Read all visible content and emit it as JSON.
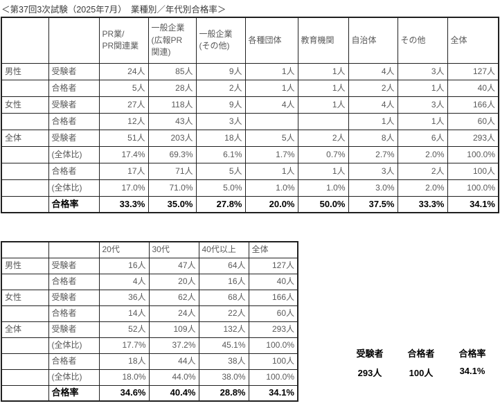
{
  "title": "＜第37回3次試験（2025年7月）　業種別／年代別合格率＞",
  "colors": {
    "border": "#1f1f1f",
    "text": "#595959",
    "text_strong": "#000000",
    "background": "#ffffff"
  },
  "industry_table": {
    "header": [
      "",
      "",
      "PR業/\nPR関連業",
      "一般企業\n(広報PR\n関連)",
      "一般企業\n(その他)",
      "各種団体",
      "教育機関",
      "自治体",
      "その他",
      "全体"
    ],
    "rows": [
      [
        "男性",
        "受験者",
        "24人",
        "85人",
        "9人",
        "1人",
        "1人",
        "4人",
        "3人",
        "127人"
      ],
      [
        "",
        "合格者",
        "5人",
        "28人",
        "2人",
        "1人",
        "1人",
        "2人",
        "1人",
        "40人"
      ],
      [
        "女性",
        "受験者",
        "27人",
        "118人",
        "9人",
        "4人",
        "1人",
        "4人",
        "3人",
        "166人"
      ],
      [
        "",
        "合格者",
        "12人",
        "43人",
        "3人",
        "",
        "",
        "1人",
        "1人",
        "60人"
      ],
      [
        "全体",
        "受験者",
        "51人",
        "203人",
        "18人",
        "5人",
        "2人",
        "8人",
        "6人",
        "293人"
      ],
      [
        "",
        "(全体比)",
        "17.4%",
        "69.3%",
        "6.1%",
        "1.7%",
        "0.7%",
        "2.7%",
        "2.0%",
        "100.0%"
      ],
      [
        "",
        "合格者",
        "17人",
        "71人",
        "5人",
        "1人",
        "1人",
        "3人",
        "2人",
        "100人"
      ],
      [
        "",
        "(全体比)",
        "17.0%",
        "71.0%",
        "5.0%",
        "1.0%",
        "1.0%",
        "3.0%",
        "2.0%",
        "100.0%"
      ],
      [
        "",
        "合格率",
        "33.3%",
        "35.0%",
        "27.8%",
        "20.0%",
        "50.0%",
        "37.5%",
        "33.3%",
        "34.1%"
      ]
    ]
  },
  "age_table": {
    "header": [
      "",
      "",
      "20代",
      "30代",
      "40代以上",
      "全体"
    ],
    "rows": [
      [
        "男性",
        "受験者",
        "16人",
        "47人",
        "64人",
        "127人"
      ],
      [
        "",
        "合格者",
        "4人",
        "20人",
        "16人",
        "40人"
      ],
      [
        "女性",
        "受験者",
        "36人",
        "62人",
        "68人",
        "166人"
      ],
      [
        "",
        "合格者",
        "14人",
        "24人",
        "22人",
        "60人"
      ],
      [
        "全体",
        "受験者",
        "52人",
        "109人",
        "132人",
        "293人"
      ],
      [
        "",
        "(全体比)",
        "17.7%",
        "37.2%",
        "45.1%",
        "100.0%"
      ],
      [
        "",
        "合格者",
        "18人",
        "44人",
        "38人",
        "100人"
      ],
      [
        "",
        "(全体比)",
        "18.0%",
        "44.0%",
        "38.0%",
        "100.0%"
      ],
      [
        "",
        "合格率",
        "34.6%",
        "40.4%",
        "28.8%",
        "34.1%"
      ]
    ]
  },
  "summary": {
    "labels": [
      "受験者",
      "合格者",
      "合格率"
    ],
    "values": [
      "293人",
      "100人",
      "34.1%"
    ]
  }
}
